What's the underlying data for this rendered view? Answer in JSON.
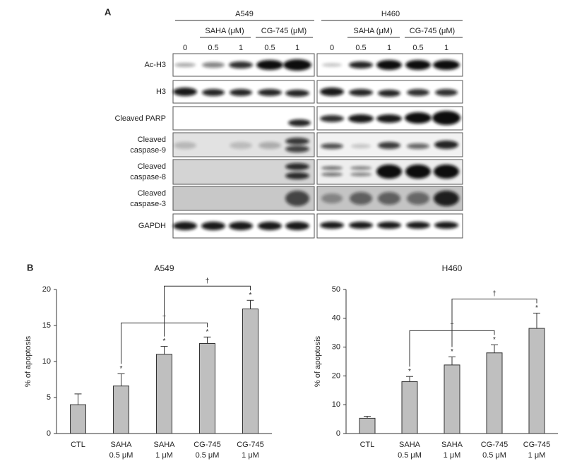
{
  "panel_a": {
    "label": "A",
    "cell_lines": [
      {
        "name": "A549",
        "treatments": [
          "SAHA (μM)",
          "CG-745 (μM)"
        ],
        "lanes": [
          "0",
          "0.5",
          "1",
          "0.5",
          "1"
        ]
      },
      {
        "name": "H460",
        "treatments": [
          "SAHA (μM)",
          "CG-745 (μM)"
        ],
        "lanes": [
          "0",
          "0.5",
          "1",
          "0.5",
          "1"
        ]
      }
    ],
    "rows": [
      [
        "Ac-H3"
      ],
      [
        "H3"
      ],
      [
        "Cleaved PARP"
      ],
      [
        "Cleaved",
        "caspase-9"
      ],
      [
        "Cleaved",
        "caspase-8"
      ],
      [
        "Cleaved",
        "caspase-3"
      ],
      [
        "GAPDH"
      ]
    ]
  },
  "panel_b_label": "B",
  "chart_data": [
    {
      "type": "bar",
      "title": "A549",
      "y_label": "% of apoptosis",
      "categories": [
        "CTL",
        "SAHA",
        "SAHA",
        "CG-745",
        "CG-745"
      ],
      "category_sublabels": [
        null,
        "0.5 μM",
        "1 μM",
        "0.5 μM",
        "1 μM"
      ],
      "values": [
        4.0,
        6.6,
        11.0,
        12.5,
        17.3
      ],
      "errors": [
        1.5,
        1.7,
        1.1,
        0.9,
        1.2
      ],
      "markers": [
        null,
        "*",
        "*",
        "*",
        "*"
      ],
      "comparisons": [
        {
          "from": 1,
          "to": 3,
          "label": "†"
        },
        {
          "from": 2,
          "to": 4,
          "label": "†"
        }
      ],
      "color": "#bfbfbf",
      "ylim": [
        0,
        20
      ],
      "yticks": [
        0,
        5,
        10,
        15,
        20
      ]
    },
    {
      "type": "bar",
      "title": "H460",
      "y_label": "% of apoptosis",
      "categories": [
        "CTL",
        "SAHA",
        "SAHA",
        "CG-745",
        "CG-745"
      ],
      "category_sublabels": [
        null,
        "0.5 μM",
        "1 μM",
        "0.5 μM",
        "1 μM"
      ],
      "values": [
        5.3,
        18.0,
        23.8,
        28.0,
        36.5
      ],
      "errors": [
        0.7,
        1.8,
        2.8,
        2.8,
        5.3
      ],
      "markers": [
        null,
        "*",
        "*",
        "*",
        "*"
      ],
      "comparisons": [
        {
          "from": 1,
          "to": 3,
          "label": "†"
        },
        {
          "from": 2,
          "to": 4,
          "label": "†"
        }
      ],
      "color": "#bfbfbf",
      "ylim": [
        0,
        50
      ],
      "yticks": [
        0,
        10,
        20,
        30,
        40,
        50
      ]
    }
  ]
}
